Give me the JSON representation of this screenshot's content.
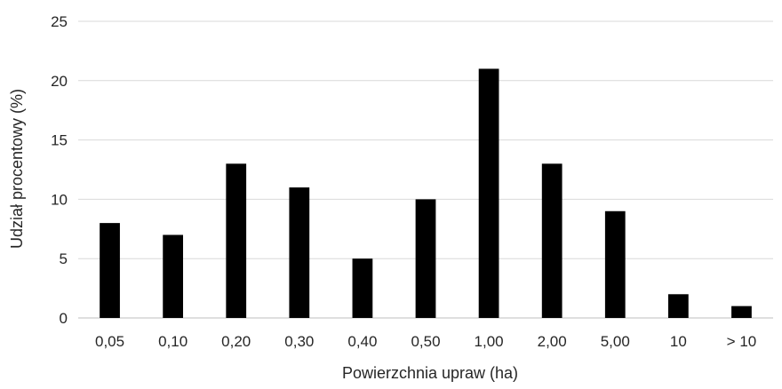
{
  "chart_data": {
    "type": "bar",
    "categories": [
      "0,05",
      "0,10",
      "0,20",
      "0,30",
      "0,40",
      "0,50",
      "1,00",
      "2,00",
      "5,00",
      "10",
      "> 10"
    ],
    "values": [
      8,
      7,
      13,
      11,
      5,
      10,
      21,
      13,
      9,
      2,
      1
    ],
    "xlabel": "Powierzchnia upraw (ha)",
    "ylabel": "Udział procentowy (%)",
    "ylim": [
      0,
      25
    ],
    "yticks": [
      0,
      5,
      10,
      15,
      20,
      25
    ],
    "grid": true,
    "legend": "none",
    "colors": {
      "bar": "#000000",
      "grid": "#d9d9d9"
    }
  }
}
